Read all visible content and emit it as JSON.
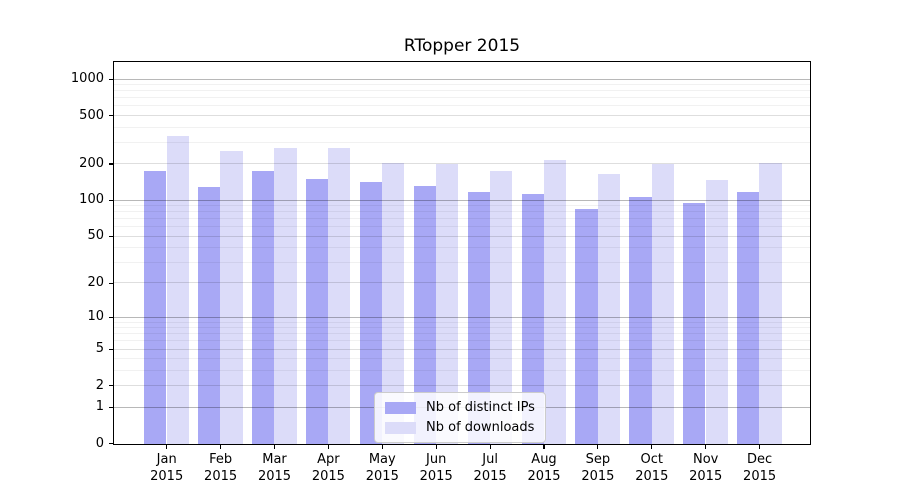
{
  "chart_data": {
    "type": "bar",
    "title": "RTopper 2015",
    "categories": [
      "Jan",
      "Feb",
      "Mar",
      "Apr",
      "May",
      "Jun",
      "Jul",
      "Aug",
      "Sep",
      "Oct",
      "Nov",
      "Dec"
    ],
    "year_label": "2015",
    "series": [
      {
        "name": "Nb of distinct IPs",
        "color": "#a8a8f5",
        "values": [
          173,
          129,
          173,
          151,
          140,
          132,
          116,
          113,
          85,
          106,
          95,
          117
        ]
      },
      {
        "name": "Nb of downloads",
        "color": "#dcdcf9",
        "values": [
          337,
          257,
          272,
          271,
          204,
          198,
          173,
          213,
          163,
          199,
          148,
          201
        ]
      }
    ],
    "yticks": [
      1000,
      500,
      200,
      100,
      50,
      20,
      10,
      5,
      2,
      1,
      0
    ],
    "y_scale": "log10(value+1)",
    "ylim": [
      0,
      1400
    ],
    "grid": "horizontal",
    "legend_position": "inside-bottom-center",
    "colors": {
      "spine": "#000000",
      "grid_major": "#b8b8b8",
      "grid_mid": "#dddddd",
      "grid_minor": "#f1f1f1",
      "legend_border": "#cccccc"
    }
  }
}
